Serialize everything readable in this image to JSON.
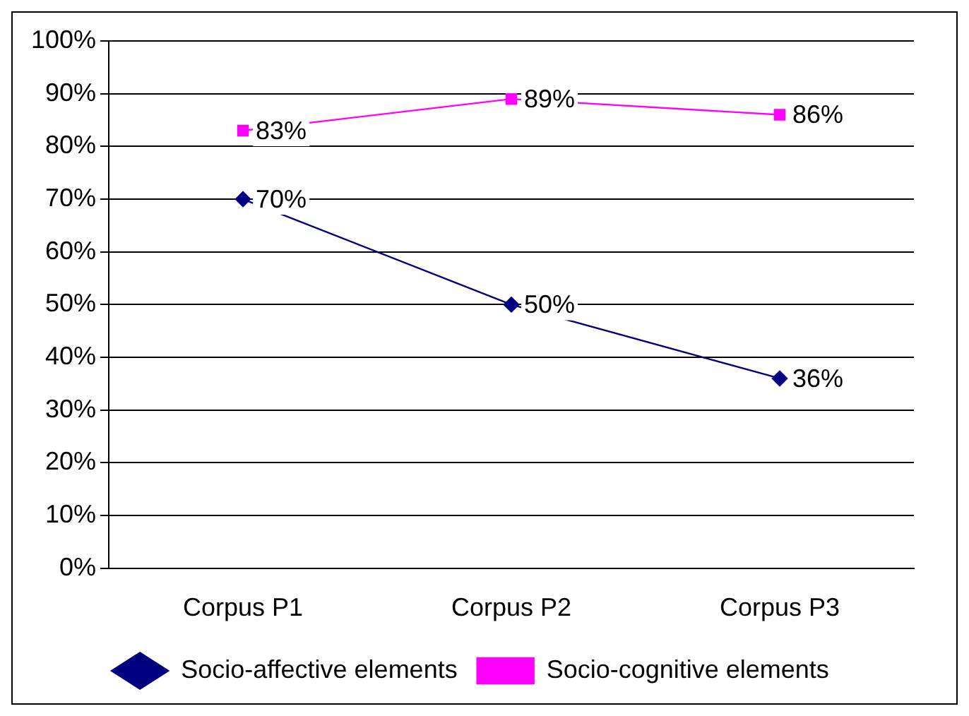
{
  "chart_data": {
    "type": "line",
    "categories": [
      "Corpus P1",
      "Corpus P2",
      "Corpus P3"
    ],
    "series": [
      {
        "name": "Socio-affective elements",
        "color": "#000080",
        "values": [
          70,
          50,
          36
        ],
        "value_labels": [
          "70%",
          "50%",
          "36%"
        ],
        "marker": "diamond"
      },
      {
        "name": "Socio-cognitive elements",
        "color": "#ff00ff",
        "values": [
          83,
          89,
          86
        ],
        "value_labels": [
          "83%",
          "89%",
          "86%"
        ],
        "marker": "square"
      }
    ],
    "ylim": [
      0,
      100
    ],
    "yticks": [
      {
        "value": 0,
        "label": "0%"
      },
      {
        "value": 10,
        "label": "10%"
      },
      {
        "value": 20,
        "label": "20%"
      },
      {
        "value": 30,
        "label": "30%"
      },
      {
        "value": 40,
        "label": "40%"
      },
      {
        "value": 50,
        "label": "50%"
      },
      {
        "value": 60,
        "label": "60%"
      },
      {
        "value": 70,
        "label": "70%"
      },
      {
        "value": 80,
        "label": "80%"
      },
      {
        "value": 90,
        "label": "90%"
      },
      {
        "value": 100,
        "label": "100%"
      }
    ],
    "grid": "y",
    "legend": "bottom",
    "line_style": "solid"
  }
}
